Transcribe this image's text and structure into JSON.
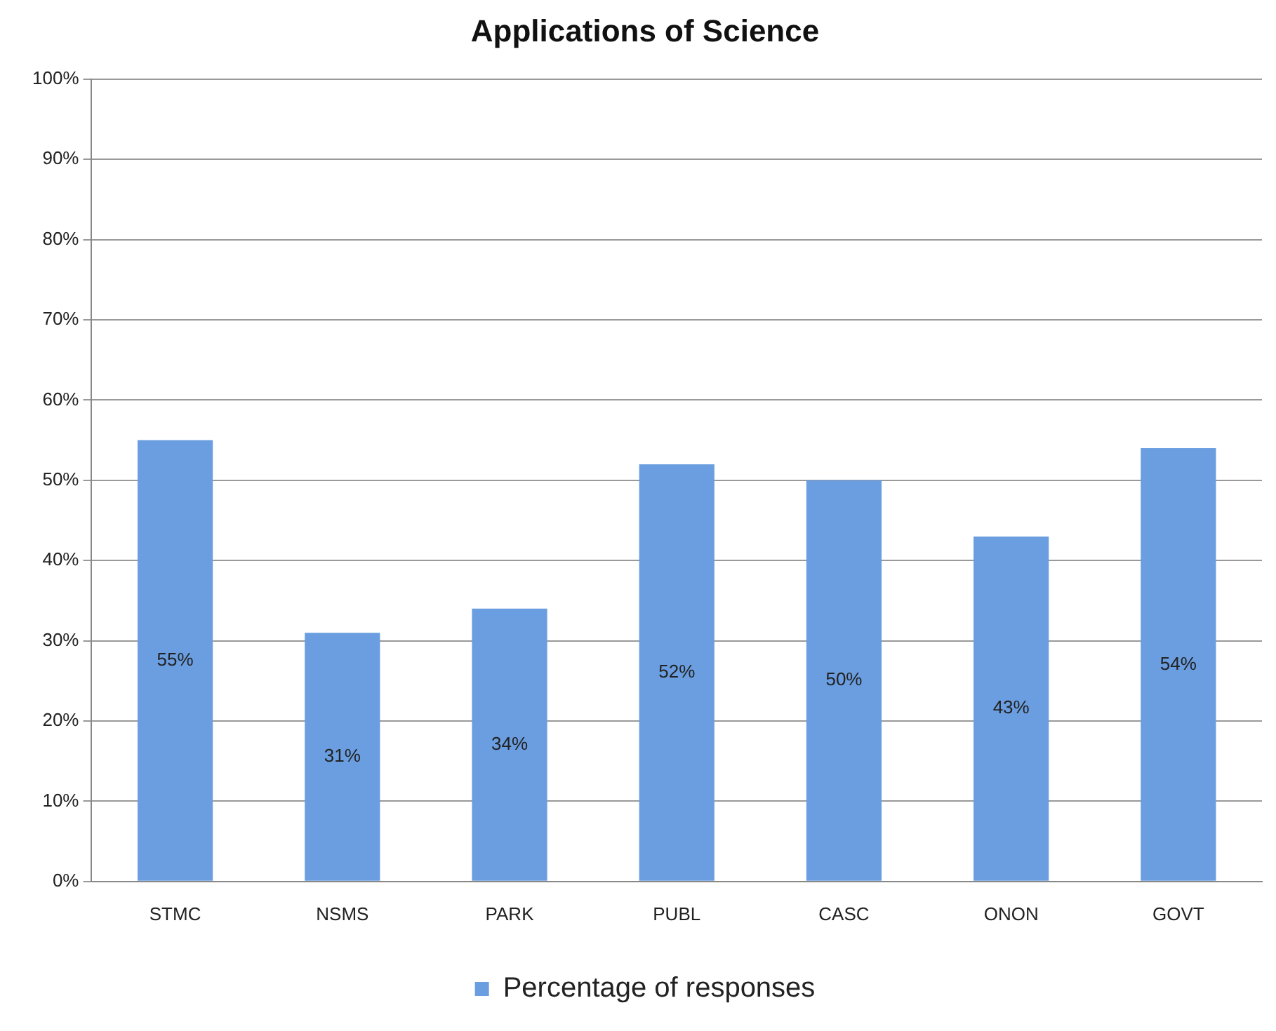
{
  "chart_data": {
    "type": "bar",
    "title": "Applications of Science",
    "categories": [
      "STMC",
      "NSMS",
      "PARK",
      "PUBL",
      "CASC",
      "ONON",
      "GOVT"
    ],
    "series": [
      {
        "name": "Percentage of responses",
        "color": "#6a9ee0",
        "values": [
          55,
          31,
          34,
          52,
          50,
          43,
          54
        ],
        "value_labels": [
          "55%",
          "31%",
          "34%",
          "52%",
          "50%",
          "43%",
          "54%"
        ]
      }
    ],
    "ylim": [
      0,
      100
    ],
    "yticks": [
      {
        "value": 0,
        "label": "0%"
      },
      {
        "value": 10,
        "label": "10%"
      },
      {
        "value": 20,
        "label": "20%"
      },
      {
        "value": 30,
        "label": "30%"
      },
      {
        "value": 40,
        "label": "40%"
      },
      {
        "value": 50,
        "label": "50%"
      },
      {
        "value": 60,
        "label": "60%"
      },
      {
        "value": 70,
        "label": "70%"
      },
      {
        "value": 80,
        "label": "80%"
      },
      {
        "value": 90,
        "label": "90%"
      },
      {
        "value": 100,
        "label": "100%"
      }
    ],
    "grid": "y",
    "legend": "bottom"
  }
}
